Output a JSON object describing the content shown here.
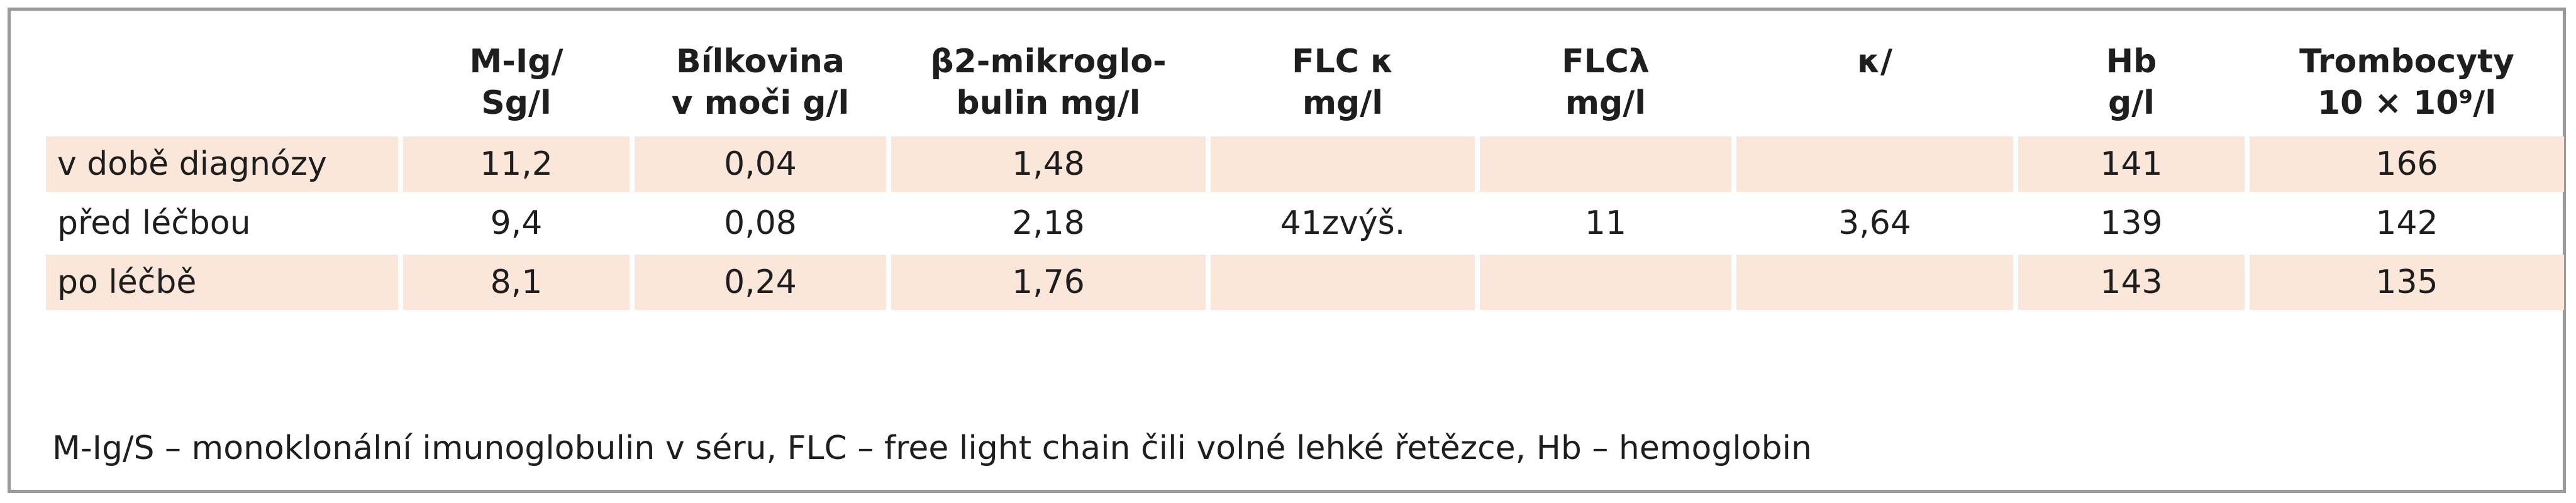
{
  "table": {
    "headers": [
      {
        "line1": "",
        "line2": ""
      },
      {
        "line1": "M-Ig/",
        "line2": "Sg/l"
      },
      {
        "line1": "Bílkovina",
        "line2": "v moči g/l"
      },
      {
        "line1": "β2-mikroglo-",
        "line2": "bulin mg/l"
      },
      {
        "line1": "FLC κ",
        "line2": "mg/l"
      },
      {
        "line1": "FLCλ",
        "line2": "mg/l"
      },
      {
        "line1": "κ/",
        "line2": ""
      },
      {
        "line1": "Hb",
        "line2": "g/l"
      },
      {
        "line1": "Trombocyty",
        "line2": "10 × 10⁹/l"
      }
    ],
    "rows": [
      {
        "label": "v době diagnózy",
        "cells": [
          "11,2",
          "0,04",
          "1,48",
          "",
          "",
          "",
          "141",
          "166"
        ],
        "shaded": true
      },
      {
        "label": "před léčbou",
        "cells": [
          "9,4",
          "0,08",
          "2,18",
          "41zvýš.",
          "11",
          "3,64",
          "139",
          "142"
        ],
        "shaded": false
      },
      {
        "label": "po léčbě",
        "cells": [
          "8,1",
          "0,24",
          "1,76",
          "",
          "",
          "",
          "143",
          "135"
        ],
        "shaded": true
      }
    ]
  },
  "footnote": "M-Ig/S – monoklonální imunoglobulin v séru, FLC – free light chain čili volné lehké řetězce, Hb – hemoglobin",
  "colors": {
    "shade": "#fbe7d9",
    "border": "#9a9a9a",
    "text": "#1e1e1e"
  }
}
